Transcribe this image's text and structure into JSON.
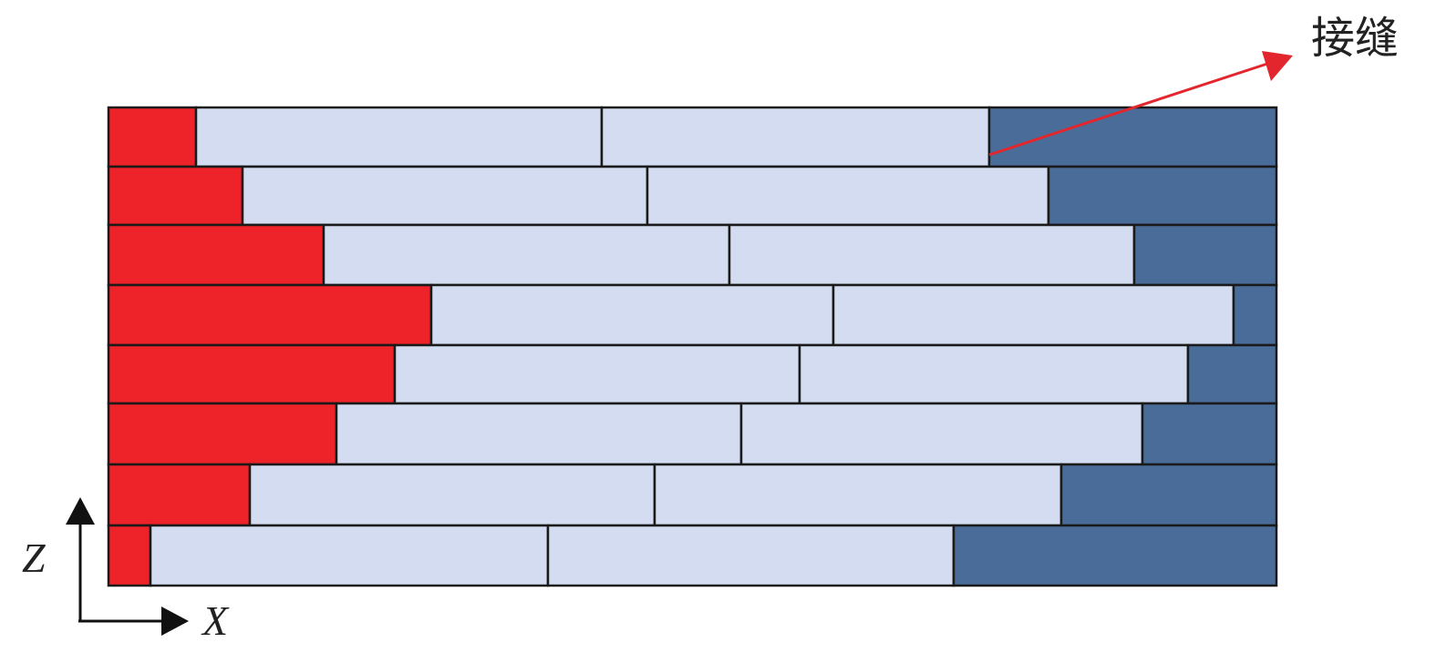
{
  "annotation": {
    "label": "接缝"
  },
  "axes": {
    "z_label": "Z",
    "x_label": "X"
  }
}
